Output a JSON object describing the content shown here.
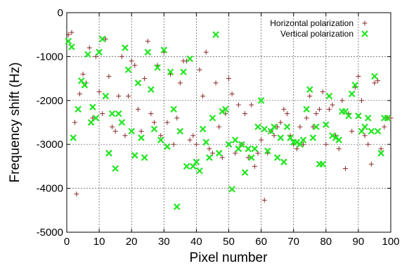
{
  "chart_data": {
    "type": "scatter",
    "title": "",
    "xlabel": "Pixel number",
    "ylabel": "Frequency shift (Hz)",
    "xlim": [
      0,
      100
    ],
    "ylim": [
      -5000,
      0
    ],
    "xticks": [
      "0",
      "10",
      "20",
      "30",
      "40",
      "50",
      "60",
      "70",
      "80",
      "90",
      "100"
    ],
    "yticks": [
      "0",
      "-1000",
      "-2000",
      "-3000",
      "-4000",
      "-5000"
    ],
    "grid": true,
    "legend": "top-right",
    "series": [
      {
        "name": "Horizontal polarization",
        "marker": "plus",
        "color": "#8b2a2a",
        "points": [
          [
            0.5,
            -500
          ],
          [
            1.5,
            -450
          ],
          [
            2.5,
            -2500
          ],
          [
            3,
            -4130
          ],
          [
            4,
            -1850
          ],
          [
            5,
            -1400
          ],
          [
            6,
            -1600
          ],
          [
            7,
            -800
          ],
          [
            8,
            -2400
          ],
          [
            9,
            -1000
          ],
          [
            10,
            -1800
          ],
          [
            11,
            -2300
          ],
          [
            12,
            -600
          ],
          [
            13,
            -1450
          ],
          [
            14,
            -2600
          ],
          [
            15,
            -2700
          ],
          [
            16,
            -1900
          ],
          [
            17,
            -1000
          ],
          [
            18,
            -2800
          ],
          [
            19,
            -1900
          ],
          [
            20,
            -1100
          ],
          [
            21,
            -1200
          ],
          [
            22,
            -2200
          ],
          [
            23,
            -2700
          ],
          [
            24,
            -1500
          ],
          [
            25,
            -650
          ],
          [
            26,
            -2300
          ],
          [
            27,
            -2500
          ],
          [
            28,
            -1200
          ],
          [
            29,
            -2800
          ],
          [
            30,
            -900
          ],
          [
            31,
            -2500
          ],
          [
            32,
            -1400
          ],
          [
            33,
            -3000
          ],
          [
            34,
            -2400
          ],
          [
            35,
            -1600
          ],
          [
            36,
            -1100
          ],
          [
            37,
            -1100
          ],
          [
            38,
            -2900
          ],
          [
            39,
            -2800
          ],
          [
            40,
            -3000
          ],
          [
            41,
            -1300
          ],
          [
            42,
            -1900
          ],
          [
            43,
            -900
          ],
          [
            44,
            -3100
          ],
          [
            45,
            -3200
          ],
          [
            46,
            -1600
          ],
          [
            47,
            -2600
          ],
          [
            48,
            -3300
          ],
          [
            49,
            -2300
          ],
          [
            50,
            -1500
          ],
          [
            51,
            -1850
          ],
          [
            52,
            -3200
          ],
          [
            53,
            -2100
          ],
          [
            54,
            -3000
          ],
          [
            55,
            -2300
          ],
          [
            56,
            -3300
          ],
          [
            57,
            -2100
          ],
          [
            58,
            -3500
          ],
          [
            59,
            -3200
          ],
          [
            60,
            -2900
          ],
          [
            61,
            -4270
          ],
          [
            62,
            -3200
          ],
          [
            63,
            -2700
          ],
          [
            64,
            -2800
          ],
          [
            65,
            -2600
          ],
          [
            66,
            -2500
          ],
          [
            67,
            -2200
          ],
          [
            68,
            -2300
          ],
          [
            69,
            -2800
          ],
          [
            70,
            -3000
          ],
          [
            71,
            -3100
          ],
          [
            72,
            -2600
          ],
          [
            73,
            -3000
          ],
          [
            74,
            -2400
          ],
          [
            75,
            -1900
          ],
          [
            76,
            -2600
          ],
          [
            77,
            -2300
          ],
          [
            78,
            -2200
          ],
          [
            79,
            -1800
          ],
          [
            80,
            -3000
          ],
          [
            81,
            -2200
          ],
          [
            82,
            -2100
          ],
          [
            83,
            -2800
          ],
          [
            84,
            -3100
          ],
          [
            85,
            -2000
          ],
          [
            86,
            -3550
          ],
          [
            87,
            -2300
          ],
          [
            88,
            -2700
          ],
          [
            89,
            -1700
          ],
          [
            90,
            -1450
          ],
          [
            91,
            -2000
          ],
          [
            92,
            -2800
          ],
          [
            93,
            -3000
          ],
          [
            94,
            -3450
          ],
          [
            95,
            -1600
          ],
          [
            96,
            -1550
          ],
          [
            97,
            -3100
          ],
          [
            98,
            -2600
          ],
          [
            99,
            -2400
          ],
          [
            100,
            -2400
          ]
        ]
      },
      {
        "name": "Vertical polarization",
        "marker": "x",
        "color": "#22e622",
        "points": [
          [
            0.5,
            -650
          ],
          [
            1.5,
            -780
          ],
          [
            2,
            -2850
          ],
          [
            3.5,
            -2200
          ],
          [
            4.5,
            -1550
          ],
          [
            5.5,
            -1650
          ],
          [
            6.5,
            -950
          ],
          [
            7.5,
            -2500
          ],
          [
            8,
            -2150
          ],
          [
            9,
            -2400
          ],
          [
            10,
            -900
          ],
          [
            11,
            -600
          ],
          [
            12,
            -1900
          ],
          [
            13,
            -3200
          ],
          [
            14,
            -2300
          ],
          [
            15,
            -3550
          ],
          [
            16,
            -2300
          ],
          [
            17,
            -2500
          ],
          [
            18,
            -800
          ],
          [
            19,
            -1300
          ],
          [
            20,
            -2700
          ],
          [
            21,
            -3250
          ],
          [
            22,
            -1600
          ],
          [
            23,
            -2850
          ],
          [
            24,
            -3300
          ],
          [
            25,
            -900
          ],
          [
            26,
            -1750
          ],
          [
            27,
            -2650
          ],
          [
            28,
            -1250
          ],
          [
            29,
            -2900
          ],
          [
            30,
            -850
          ],
          [
            31,
            -3050
          ],
          [
            32,
            -1350
          ],
          [
            33,
            -2200
          ],
          [
            34,
            -4420
          ],
          [
            35,
            -2700
          ],
          [
            36,
            -1350
          ],
          [
            37,
            -3500
          ],
          [
            38,
            -1050
          ],
          [
            39,
            -3500
          ],
          [
            40,
            -3400
          ],
          [
            41,
            -3600
          ],
          [
            42,
            -2650
          ],
          [
            43,
            -2950
          ],
          [
            44,
            -3300
          ],
          [
            45,
            -2400
          ],
          [
            46,
            -500
          ],
          [
            47,
            -3200
          ],
          [
            48,
            -2250
          ],
          [
            49,
            -2200
          ],
          [
            50,
            -3000
          ],
          [
            51,
            -4020
          ],
          [
            52,
            -2900
          ],
          [
            53,
            -3100
          ],
          [
            54,
            -3000
          ],
          [
            55,
            -3640
          ],
          [
            56,
            -3100
          ],
          [
            57,
            -3300
          ],
          [
            58,
            -3100
          ],
          [
            59,
            -2600
          ],
          [
            60,
            -2000
          ],
          [
            61,
            -2650
          ],
          [
            62,
            -3150
          ],
          [
            63,
            -2700
          ],
          [
            64,
            -2600
          ],
          [
            65,
            -3300
          ],
          [
            66,
            -2850
          ],
          [
            67,
            -3400
          ],
          [
            68,
            -2600
          ],
          [
            69,
            -2850
          ],
          [
            70,
            -2950
          ],
          [
            71,
            -2950
          ],
          [
            72,
            -3000
          ],
          [
            73,
            -2900
          ],
          [
            74,
            -2200
          ],
          [
            75,
            -1750
          ],
          [
            76,
            -2850
          ],
          [
            77,
            -2600
          ],
          [
            78,
            -3450
          ],
          [
            79,
            -3450
          ],
          [
            80,
            -2550
          ],
          [
            81,
            -1900
          ],
          [
            82,
            -2800
          ],
          [
            83,
            -2850
          ],
          [
            84,
            -2900
          ],
          [
            85,
            -2250
          ],
          [
            86,
            -2250
          ],
          [
            87,
            -2350
          ],
          [
            88,
            -1850
          ],
          [
            89,
            -1650
          ],
          [
            90,
            -2350
          ],
          [
            91,
            -2700
          ],
          [
            92,
            -2600
          ],
          [
            93,
            -2400
          ],
          [
            94,
            -2700
          ],
          [
            95,
            -1450
          ],
          [
            96,
            -2700
          ],
          [
            97,
            -3200
          ],
          [
            98,
            -2400
          ],
          [
            99,
            -2400
          ]
        ]
      }
    ]
  }
}
